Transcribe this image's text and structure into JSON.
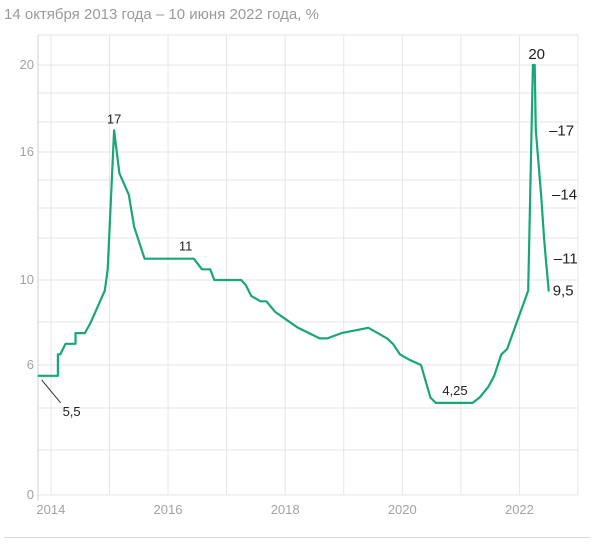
{
  "subtitle": "14 октября 2013 года – 10 июня 2022 года, %",
  "chart_data": {
    "type": "line",
    "title": "",
    "subtitle": "14 октября 2013 года – 10 июня 2022 года, %",
    "xlabel": "",
    "ylabel": "",
    "xlim": [
      2013.78,
      2023.0
    ],
    "ylim": [
      0,
      20
    ],
    "grid": true,
    "y_ticks": [
      0,
      6,
      10,
      16,
      20
    ],
    "x_ticks": [
      2014,
      2016,
      2018,
      2020,
      2022
    ],
    "line_color": "#1aa676",
    "series": [
      {
        "x": [
          2013.79,
          2014.12,
          2014.12,
          2014.16,
          2014.25,
          2014.42,
          2014.42,
          2014.58,
          2014.68,
          2014.92,
          2014.97,
          2015.08,
          2015.17,
          2015.33,
          2015.42,
          2015.6,
          2016.44,
          2016.58,
          2016.72,
          2016.79,
          2017.25,
          2017.33,
          2017.42,
          2017.58,
          2017.68,
          2017.83,
          2017.96,
          2018.22,
          2018.59,
          2018.72,
          2018.96,
          2019.42,
          2019.58,
          2019.74,
          2019.84,
          2019.96,
          2020.12,
          2020.32,
          2020.48,
          2020.57,
          2021.2,
          2021.32,
          2021.47,
          2021.57,
          2021.69,
          2021.79,
          2022.15,
          2022.23,
          2022.26,
          2022.28,
          2022.37,
          2022.42,
          2022.45,
          2022.5
        ],
        "y": [
          5.5,
          5.5,
          6.5,
          6.5,
          7,
          7,
          7.5,
          7.5,
          8,
          9.5,
          10.5,
          17,
          15,
          14,
          12.5,
          11,
          11,
          10.5,
          10.5,
          10,
          10,
          9.75,
          9.25,
          9,
          9,
          8.5,
          8.25,
          7.75,
          7.25,
          7.25,
          7.5,
          7.75,
          7.5,
          7.25,
          7,
          6.5,
          6.25,
          6,
          4.5,
          4.25,
          4.25,
          4.5,
          5,
          5.5,
          6.5,
          6.75,
          9.5,
          20,
          20,
          17,
          14,
          12,
          11,
          9.5
        ]
      }
    ],
    "annotations": [
      {
        "text": "17",
        "x": 2015.08,
        "y": 17
      },
      {
        "text": "11",
        "x": 2016.3,
        "y": 11
      },
      {
        "text": "5,5",
        "x": 2013.79,
        "y": 5.5
      },
      {
        "text": "4,25",
        "x": 2020.9,
        "y": 4.25
      },
      {
        "text": "20",
        "x": 2022.26,
        "y": 20
      },
      {
        "text": "–17",
        "x": 2022.37,
        "y": 17
      },
      {
        "text": "–14",
        "x": 2022.42,
        "y": 14
      },
      {
        "text": "–11",
        "x": 2022.45,
        "y": 11
      },
      {
        "text": "9,5",
        "x": 2022.5,
        "y": 9.5
      }
    ]
  }
}
